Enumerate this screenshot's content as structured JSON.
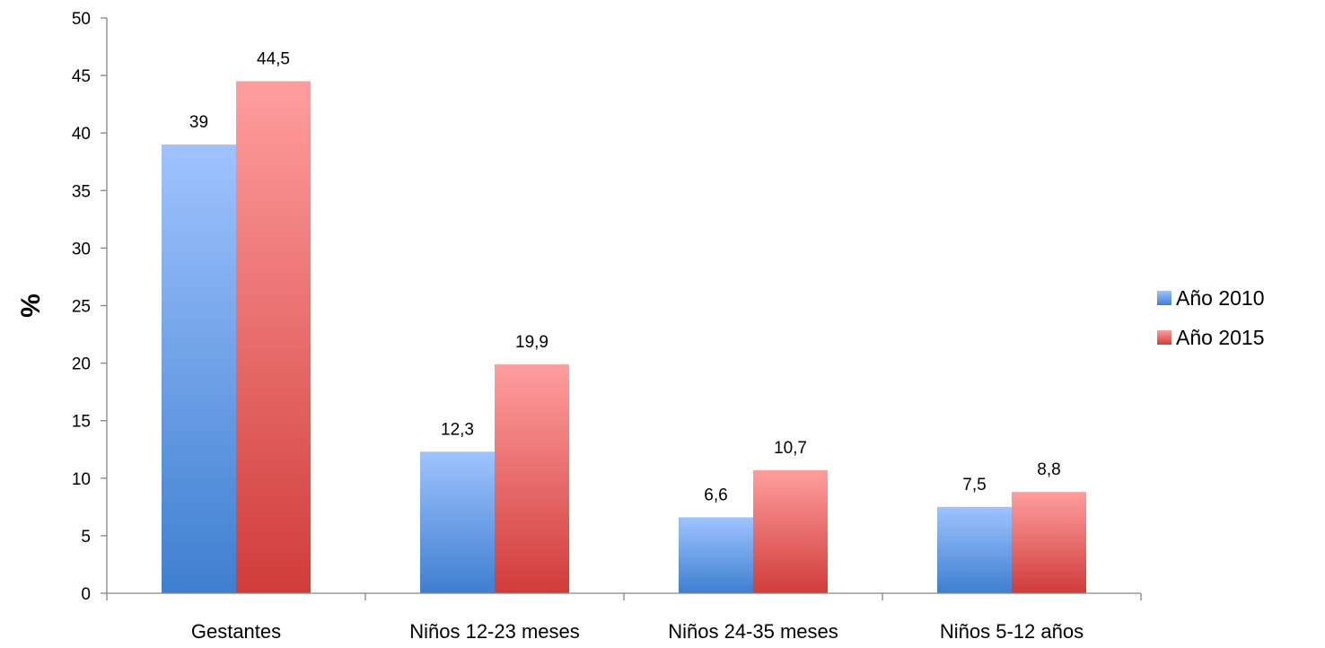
{
  "chart_data": {
    "type": "bar",
    "title": "",
    "xlabel": "",
    "ylabel": "%",
    "ylim": [
      0,
      50
    ],
    "ytick_step": 5,
    "grid": false,
    "legend_position": "right",
    "categories": [
      "Gestantes",
      "Niños 12-23 meses",
      "Niños 24-35 meses",
      "Niños 5-12 años"
    ],
    "series": [
      {
        "name": "Año 2010",
        "values": [
          39,
          12.3,
          6.6,
          7.5
        ],
        "labels": [
          "39",
          "12,3",
          "6,6",
          "7,5"
        ],
        "color_top": "#9fc3ff",
        "color_bottom": "#3e7fd0"
      },
      {
        "name": "Año 2015",
        "values": [
          44.5,
          19.9,
          10.7,
          8.8
        ],
        "labels": [
          "44,5",
          "19,9",
          "10,7",
          "8,8"
        ],
        "color_top": "#ff9e9e",
        "color_bottom": "#d03c3a"
      }
    ]
  }
}
